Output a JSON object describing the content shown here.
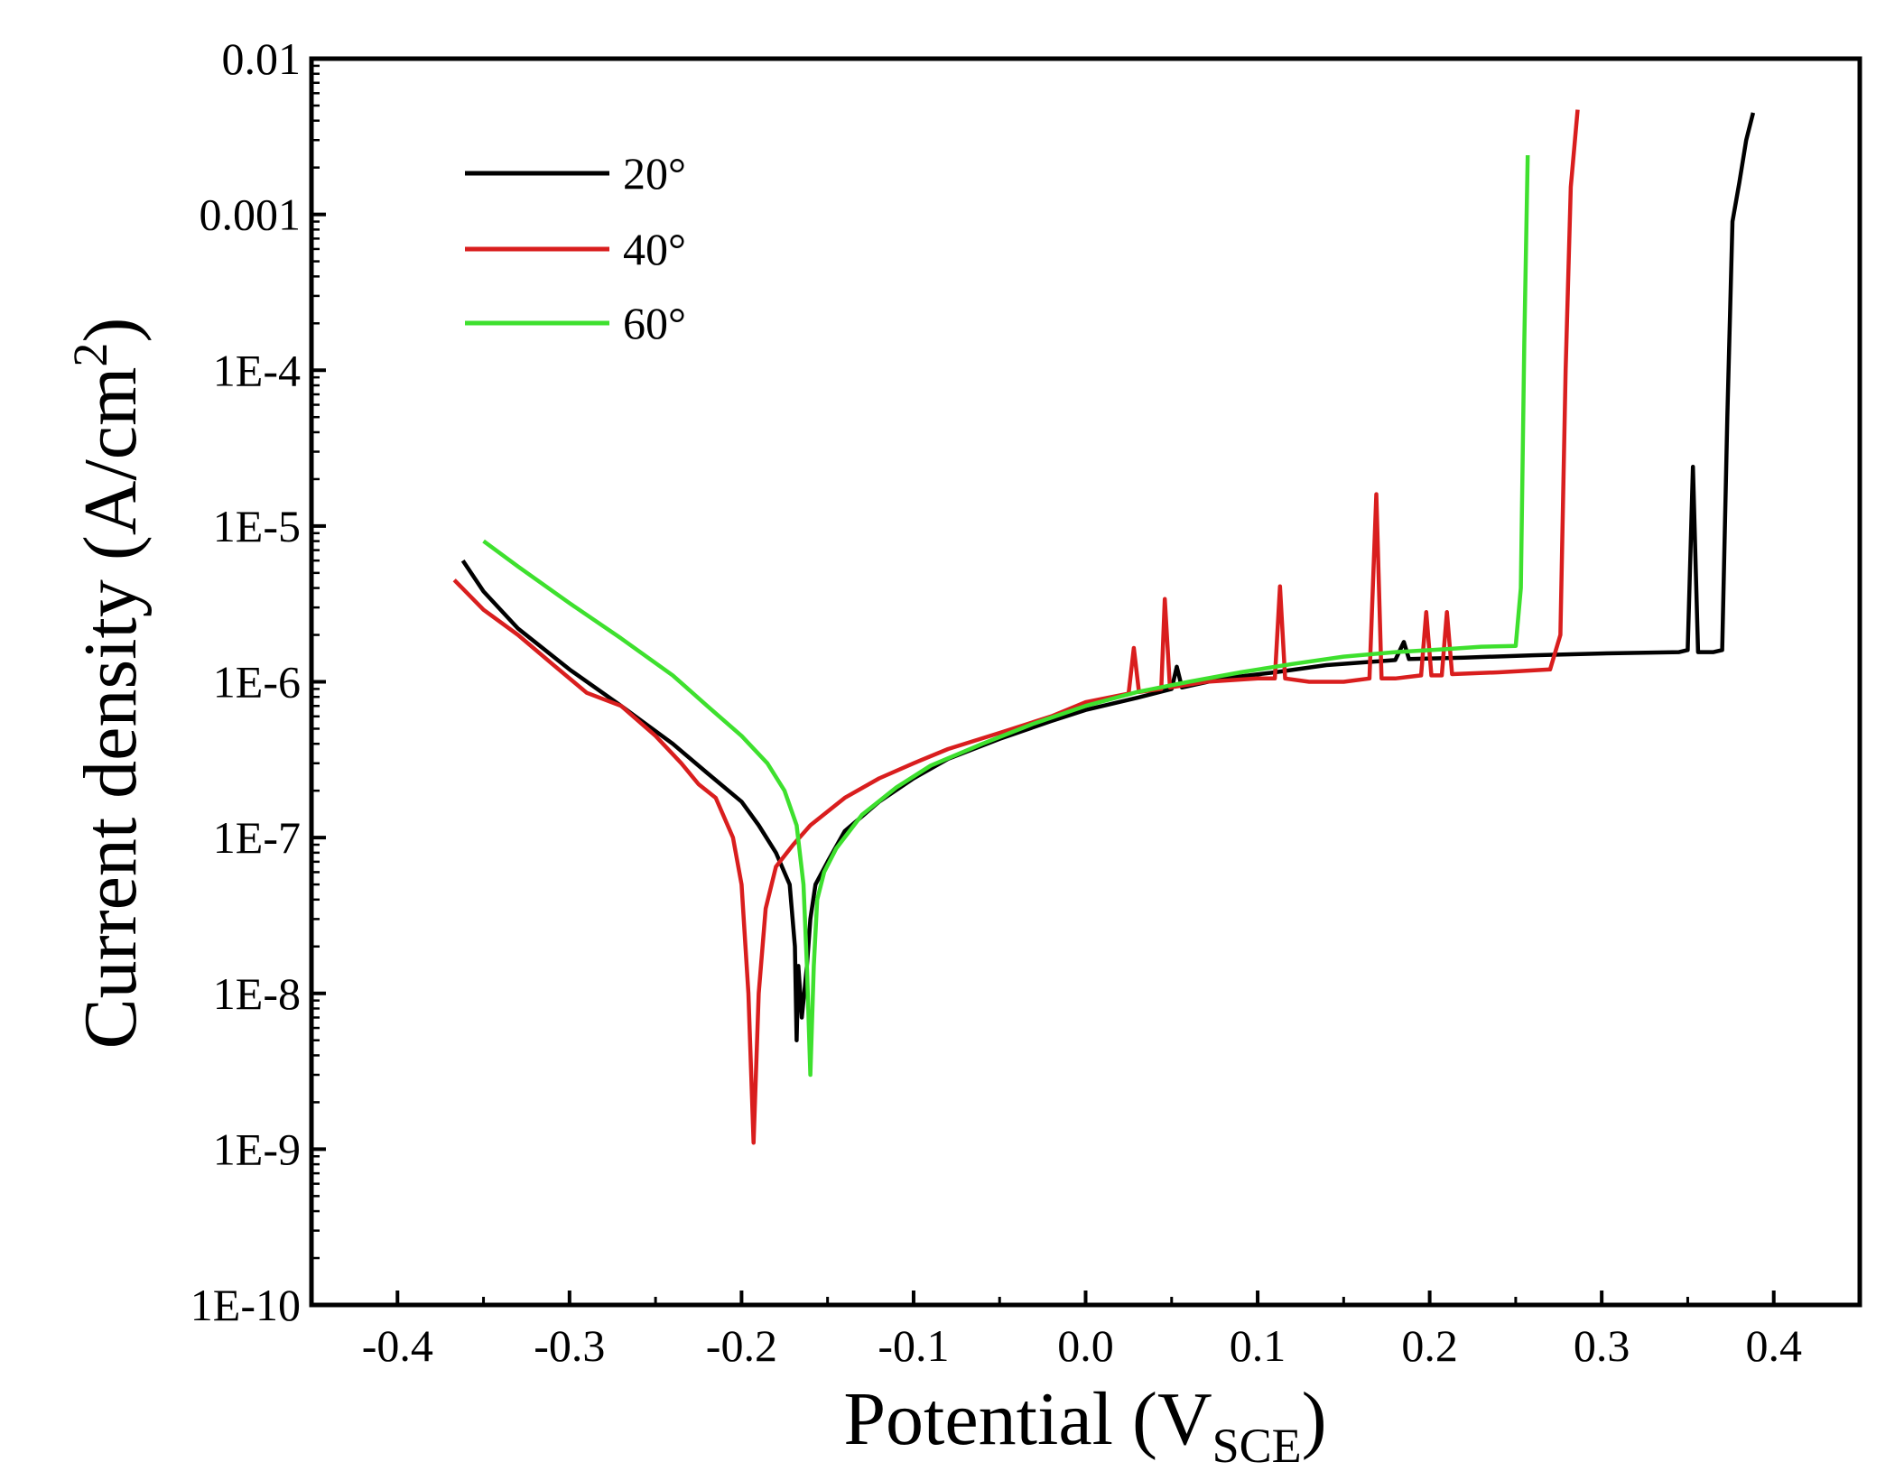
{
  "chart_data": {
    "type": "line",
    "title": "",
    "xlabel": "Potential (V",
    "xlabel_sub": "SCE",
    "xlabel_end": ")",
    "ylabel": "Current density (A/cm",
    "ylabel_sup": "2",
    "ylabel_end": ")",
    "xlim": [
      -0.45,
      0.45
    ],
    "ylim_log10": [
      -10,
      -2
    ],
    "x_ticks": [
      -0.4,
      -0.3,
      -0.2,
      -0.1,
      0.0,
      0.1,
      0.2,
      0.3,
      0.4
    ],
    "x_tick_labels": [
      "-0.4",
      "-0.3",
      "-0.2",
      "-0.1",
      "0.0",
      "0.1",
      "0.2",
      "0.3",
      "0.4"
    ],
    "y_ticks_log10": [
      -10,
      -9,
      -8,
      -7,
      -6,
      -5,
      -4,
      -3,
      -2
    ],
    "y_tick_labels": [
      "1E-10",
      "1E-9",
      "1E-8",
      "1E-7",
      "1E-6",
      "1E-5",
      "1E-4",
      "0.001",
      "0.01"
    ],
    "legend_position": "top-left",
    "series": [
      {
        "name": "20°",
        "color": "#000000",
        "points": [
          [
            -0.362,
            6e-06
          ],
          [
            -0.35,
            3.8e-06
          ],
          [
            -0.33,
            2.2e-06
          ],
          [
            -0.3,
            1.2e-06
          ],
          [
            -0.27,
            7e-07
          ],
          [
            -0.24,
            4e-07
          ],
          [
            -0.22,
            2.6e-07
          ],
          [
            -0.2,
            1.7e-07
          ],
          [
            -0.19,
            1.2e-07
          ],
          [
            -0.18,
            8e-08
          ],
          [
            -0.172,
            5e-08
          ],
          [
            -0.169,
            2e-08
          ],
          [
            -0.168,
            5e-09
          ],
          [
            -0.167,
            1.5e-08
          ],
          [
            -0.165,
            7e-09
          ],
          [
            -0.162,
            1.5e-08
          ],
          [
            -0.16,
            3e-08
          ],
          [
            -0.157,
            5e-08
          ],
          [
            -0.15,
            7e-08
          ],
          [
            -0.14,
            1.1e-07
          ],
          [
            -0.12,
            1.7e-07
          ],
          [
            -0.1,
            2.4e-07
          ],
          [
            -0.08,
            3.2e-07
          ],
          [
            -0.05,
            4.3e-07
          ],
          [
            -0.02,
            5.6e-07
          ],
          [
            0.0,
            6.6e-07
          ],
          [
            0.03,
            7.9e-07
          ],
          [
            0.05,
            9e-07
          ],
          [
            0.053,
            1.25e-06
          ],
          [
            0.056,
            9.2e-07
          ],
          [
            0.08,
            1.05e-06
          ],
          [
            0.11,
            1.15e-06
          ],
          [
            0.14,
            1.28e-06
          ],
          [
            0.18,
            1.38e-06
          ],
          [
            0.185,
            1.8e-06
          ],
          [
            0.188,
            1.4e-06
          ],
          [
            0.22,
            1.43e-06
          ],
          [
            0.26,
            1.48e-06
          ],
          [
            0.3,
            1.52e-06
          ],
          [
            0.345,
            1.55e-06
          ],
          [
            0.35,
            1.6e-06
          ],
          [
            0.353,
            2.4e-05
          ],
          [
            0.356,
            1.55e-06
          ],
          [
            0.365,
            1.55e-06
          ],
          [
            0.37,
            1.6e-06
          ],
          [
            0.373,
            5e-05
          ],
          [
            0.376,
            0.0009
          ],
          [
            0.38,
            0.0016
          ],
          [
            0.384,
            0.003
          ],
          [
            0.388,
            0.0045
          ]
        ]
      },
      {
        "name": "40°",
        "color": "#d91e1e",
        "points": [
          [
            -0.367,
            4.5e-06
          ],
          [
            -0.35,
            2.9e-06
          ],
          [
            -0.33,
            2e-06
          ],
          [
            -0.31,
            1.3e-06
          ],
          [
            -0.29,
            8.5e-07
          ],
          [
            -0.27,
            7e-07
          ],
          [
            -0.25,
            4.5e-07
          ],
          [
            -0.235,
            3e-07
          ],
          [
            -0.225,
            2.2e-07
          ],
          [
            -0.215,
            1.8e-07
          ],
          [
            -0.205,
            1e-07
          ],
          [
            -0.2,
            5e-08
          ],
          [
            -0.196,
            1e-08
          ],
          [
            -0.193,
            1.1e-09
          ],
          [
            -0.19,
            1e-08
          ],
          [
            -0.186,
            3.5e-08
          ],
          [
            -0.18,
            6.5e-08
          ],
          [
            -0.17,
            9e-08
          ],
          [
            -0.16,
            1.2e-07
          ],
          [
            -0.14,
            1.8e-07
          ],
          [
            -0.12,
            2.4e-07
          ],
          [
            -0.1,
            3e-07
          ],
          [
            -0.08,
            3.7e-07
          ],
          [
            -0.05,
            4.7e-07
          ],
          [
            -0.02,
            6e-07
          ],
          [
            0.0,
            7.4e-07
          ],
          [
            0.025,
            8.4e-07
          ],
          [
            0.028,
            1.65e-06
          ],
          [
            0.031,
            8.6e-07
          ],
          [
            0.044,
            9e-07
          ],
          [
            0.046,
            3.4e-06
          ],
          [
            0.049,
            9.2e-07
          ],
          [
            0.07,
            1e-06
          ],
          [
            0.1,
            1.05e-06
          ],
          [
            0.11,
            1.05e-06
          ],
          [
            0.113,
            4.1e-06
          ],
          [
            0.116,
            1.05e-06
          ],
          [
            0.13,
            1e-06
          ],
          [
            0.15,
            1e-06
          ],
          [
            0.165,
            1.05e-06
          ],
          [
            0.169,
            1.6e-05
          ],
          [
            0.172,
            1.05e-06
          ],
          [
            0.18,
            1.05e-06
          ],
          [
            0.195,
            1.1e-06
          ],
          [
            0.198,
            2.8e-06
          ],
          [
            0.201,
            1.1e-06
          ],
          [
            0.207,
            1.1e-06
          ],
          [
            0.21,
            2.8e-06
          ],
          [
            0.213,
            1.12e-06
          ],
          [
            0.24,
            1.15e-06
          ],
          [
            0.27,
            1.2e-06
          ],
          [
            0.276,
            2e-06
          ],
          [
            0.279,
            0.0001
          ],
          [
            0.282,
            0.0015
          ],
          [
            0.286,
            0.0047
          ]
        ]
      },
      {
        "name": "60°",
        "color": "#3ee02e",
        "points": [
          [
            -0.35,
            8e-06
          ],
          [
            -0.33,
            5.5e-06
          ],
          [
            -0.3,
            3.2e-06
          ],
          [
            -0.27,
            1.9e-06
          ],
          [
            -0.24,
            1.1e-06
          ],
          [
            -0.22,
            7e-07
          ],
          [
            -0.2,
            4.5e-07
          ],
          [
            -0.185,
            3e-07
          ],
          [
            -0.175,
            2e-07
          ],
          [
            -0.168,
            1.2e-07
          ],
          [
            -0.164,
            5e-08
          ],
          [
            -0.162,
            1.5e-08
          ],
          [
            -0.16,
            3e-09
          ],
          [
            -0.158,
            1.5e-08
          ],
          [
            -0.156,
            4e-08
          ],
          [
            -0.152,
            6e-08
          ],
          [
            -0.145,
            8.5e-08
          ],
          [
            -0.13,
            1.4e-07
          ],
          [
            -0.11,
            2.1e-07
          ],
          [
            -0.09,
            2.9e-07
          ],
          [
            -0.06,
            4e-07
          ],
          [
            -0.03,
            5.4e-07
          ],
          [
            0.0,
            7e-07
          ],
          [
            0.03,
            8.6e-07
          ],
          [
            0.06,
            1e-06
          ],
          [
            0.09,
            1.15e-06
          ],
          [
            0.12,
            1.3e-06
          ],
          [
            0.15,
            1.45e-06
          ],
          [
            0.18,
            1.55e-06
          ],
          [
            0.21,
            1.62e-06
          ],
          [
            0.23,
            1.68e-06
          ],
          [
            0.25,
            1.7e-06
          ],
          [
            0.253,
            4e-06
          ],
          [
            0.255,
            0.00015
          ],
          [
            0.257,
            0.0024
          ]
        ]
      }
    ]
  }
}
